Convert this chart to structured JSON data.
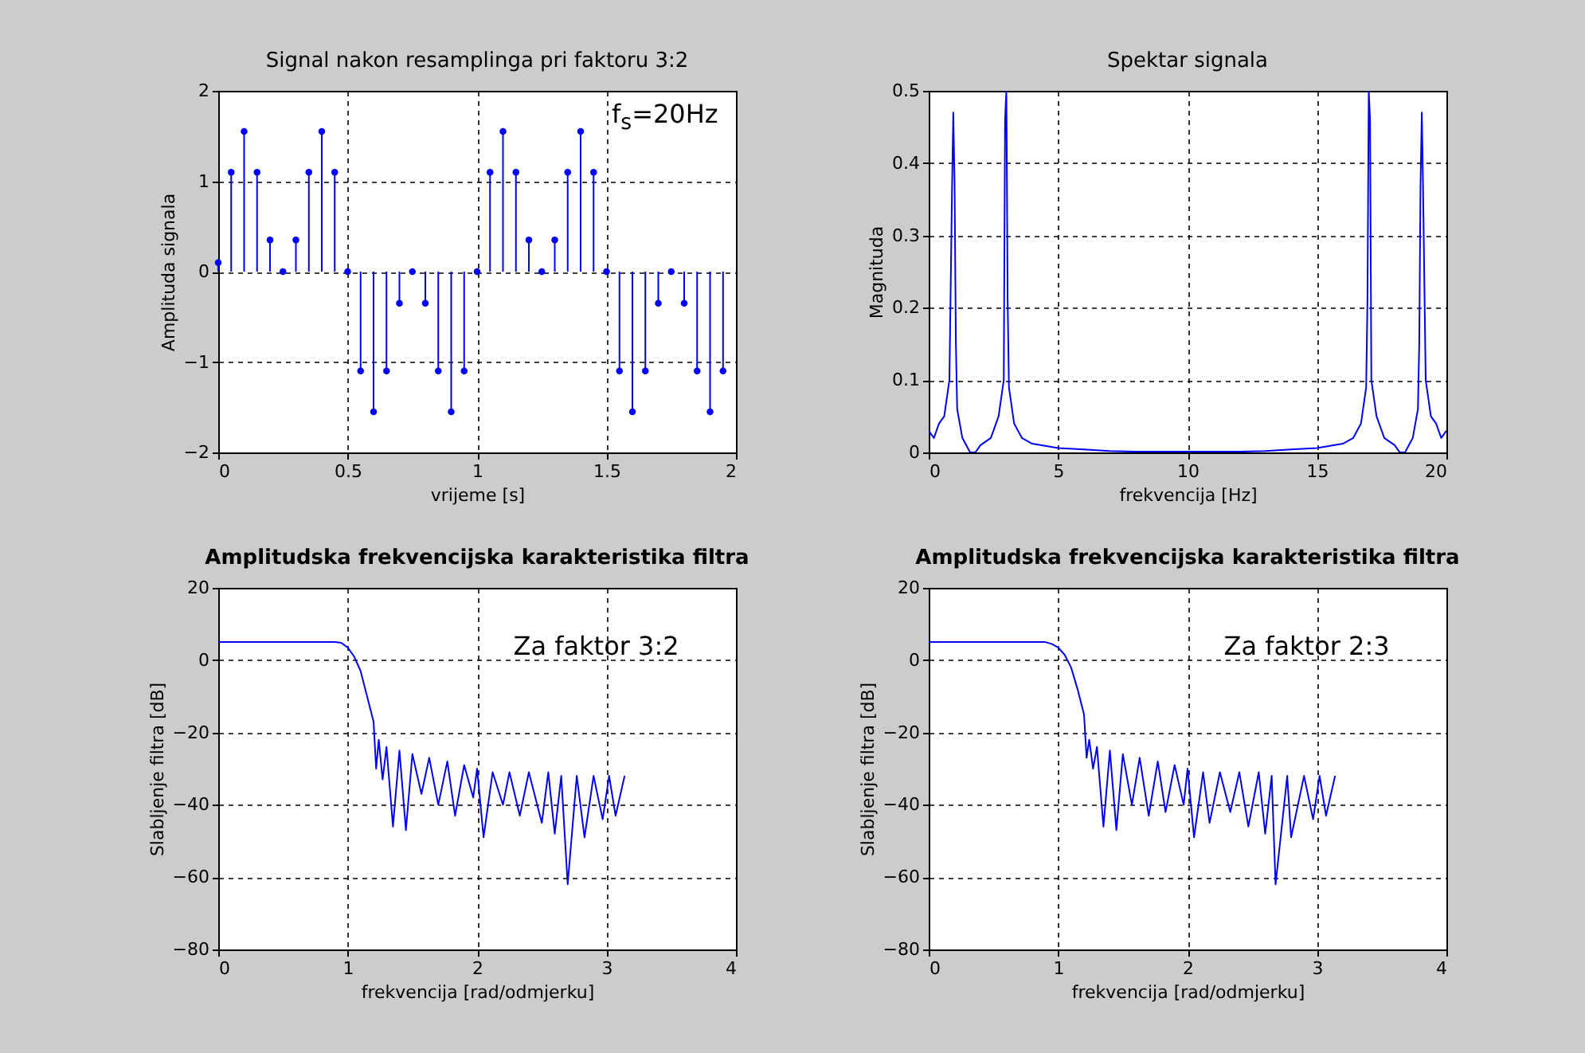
{
  "chart_data": [
    {
      "type": "lollipop",
      "title": "Signal nakon resamplinga pri faktoru 3:2",
      "xlabel": "vrijeme [s]",
      "ylabel": "Amplituda signala",
      "annotations": [
        "f$_{s}$=20Hz"
      ],
      "grid": true,
      "marker": "circle",
      "xlim": [
        0,
        2
      ],
      "xticks": [
        0,
        0.5,
        1,
        1.5,
        2
      ],
      "ylim": [
        -2,
        2
      ],
      "yticks": [
        -2,
        -1,
        0,
        1,
        2
      ],
      "x": [
        0,
        0.05,
        0.1,
        0.15,
        0.2,
        0.25,
        0.3,
        0.35,
        0.4,
        0.45,
        0.5,
        0.55,
        0.6,
        0.65,
        0.7,
        0.75,
        0.8,
        0.85,
        0.9,
        0.95,
        1,
        1.05,
        1.1,
        1.15,
        1.2,
        1.25,
        1.3,
        1.35,
        1.4,
        1.45,
        1.5,
        1.55,
        1.6,
        1.65,
        1.7,
        1.75,
        1.8,
        1.85,
        1.9,
        1.95
      ],
      "series": [
        {
          "color": "#0000ff",
          "values": [
            0.1,
            1.1,
            1.55,
            1.1,
            0.35,
            0,
            0.35,
            1.1,
            1.55,
            1.1,
            0,
            -1.1,
            -1.55,
            -1.1,
            -0.35,
            0,
            -0.35,
            -1.1,
            -1.55,
            -1.1,
            0,
            1.1,
            1.55,
            1.1,
            0.35,
            0,
            0.35,
            1.1,
            1.55,
            1.1,
            0,
            -1.1,
            -1.55,
            -1.1,
            -0.35,
            0,
            -0.35,
            -1.1,
            -1.55,
            -1.1
          ]
        }
      ]
    },
    {
      "type": "line",
      "title": "Spektar signala",
      "xlabel": "frekvencija [Hz]",
      "ylabel": "Magnituda",
      "grid": true,
      "xlim": [
        0,
        20
      ],
      "xticks": [
        0,
        5,
        10,
        15,
        20
      ],
      "ylim": [
        0,
        0.5
      ],
      "yticks": [
        0,
        0.1,
        0.2,
        0.3,
        0.4,
        0.5
      ],
      "x": [
        0,
        0.2,
        0.4,
        0.6,
        0.8,
        0.9,
        0.95,
        1,
        1.05,
        1.1,
        1.3,
        1.6,
        1.8,
        2,
        2.4,
        2.7,
        2.9,
        2.95,
        3,
        3.05,
        3.1,
        3.3,
        3.6,
        4,
        5,
        6,
        7,
        8,
        10,
        12,
        13,
        14,
        15,
        16,
        16.4,
        16.7,
        16.9,
        16.95,
        17,
        17.05,
        17.1,
        17.3,
        17.6,
        18,
        18.2,
        18.4,
        18.7,
        18.9,
        18.95,
        19,
        19.05,
        19.1,
        19.2,
        19.4,
        19.6,
        19.8,
        20
      ],
      "series": [
        {
          "color": "#0000ff",
          "values": [
            0.03,
            0.02,
            0.04,
            0.05,
            0.1,
            0.36,
            0.47,
            0.37,
            0.15,
            0.06,
            0.02,
            0,
            0,
            0.01,
            0.02,
            0.05,
            0.1,
            0.46,
            0.5,
            0.21,
            0.09,
            0.04,
            0.02,
            0.012,
            0.006,
            0.004,
            0.002,
            0.001,
            0.001,
            0.001,
            0.002,
            0.004,
            0.006,
            0.012,
            0.02,
            0.04,
            0.09,
            0.21,
            0.5,
            0.46,
            0.1,
            0.05,
            0.02,
            0.01,
            0,
            0,
            0.02,
            0.06,
            0.15,
            0.37,
            0.47,
            0.36,
            0.1,
            0.05,
            0.04,
            0.02,
            0.03
          ]
        }
      ]
    },
    {
      "type": "line",
      "title": "Amplitudska frekvencijska karakteristika filtra",
      "xlabel": "frekvencija [rad/odmjerku]",
      "ylabel": "Slabljenje filtra [dB]",
      "annotations": [
        "Za faktor 3:2"
      ],
      "grid": true,
      "xlim": [
        0,
        4
      ],
      "xticks": [
        0,
        1,
        2,
        3,
        4
      ],
      "ylim": [
        -80,
        20
      ],
      "yticks": [
        -80,
        -60,
        -40,
        -20,
        0,
        20
      ],
      "x": [
        0,
        0.5,
        0.9,
        0.95,
        1,
        1.05,
        1.1,
        1.15,
        1.2,
        1.22,
        1.24,
        1.27,
        1.3,
        1.35,
        1.4,
        1.45,
        1.5,
        1.57,
        1.63,
        1.7,
        1.77,
        1.83,
        1.9,
        1.97,
        2,
        2.05,
        2.12,
        2.2,
        2.25,
        2.33,
        2.4,
        2.5,
        2.55,
        2.6,
        2.65,
        2.7,
        2.77,
        2.83,
        2.9,
        2.97,
        3.02,
        3.07,
        3.14
      ],
      "series": [
        {
          "color": "#0000ff",
          "values": [
            5,
            5,
            5,
            4.8,
            3.5,
            1,
            -3,
            -10,
            -17,
            -30,
            -22,
            -33,
            -24,
            -46,
            -25,
            -47,
            -26,
            -37,
            -27,
            -40,
            -28,
            -43,
            -29,
            -38,
            -30,
            -49,
            -31,
            -40,
            -31,
            -43,
            -31,
            -45,
            -31,
            -48,
            -32,
            -62,
            -32,
            -49,
            -32,
            -44,
            -32,
            -43,
            -32
          ]
        }
      ]
    },
    {
      "type": "line",
      "title": "Amplitudska frekvencijska karakteristika filtra",
      "xlabel": "frekvencija [rad/odmjerku]",
      "ylabel": "Slabljenje filtra [dB]",
      "annotations": [
        "Za faktor 2:3"
      ],
      "grid": true,
      "xlim": [
        0,
        4
      ],
      "xticks": [
        0,
        1,
        2,
        3,
        4
      ],
      "ylim": [
        -80,
        20
      ],
      "yticks": [
        -80,
        -60,
        -40,
        -20,
        0,
        20
      ],
      "x": [
        0,
        0.5,
        0.9,
        0.95,
        1,
        1.05,
        1.1,
        1.15,
        1.2,
        1.22,
        1.24,
        1.27,
        1.3,
        1.35,
        1.4,
        1.45,
        1.5,
        1.57,
        1.63,
        1.7,
        1.77,
        1.83,
        1.9,
        1.97,
        2,
        2.05,
        2.12,
        2.17,
        2.25,
        2.33,
        2.4,
        2.47,
        2.55,
        2.6,
        2.65,
        2.68,
        2.77,
        2.8,
        2.9,
        2.97,
        3.02,
        3.07,
        3.14
      ],
      "series": [
        {
          "color": "#0000ff",
          "values": [
            5,
            5,
            5,
            4.5,
            3.5,
            1.5,
            -2,
            -8,
            -15,
            -27,
            -22,
            -30,
            -24,
            -46,
            -25,
            -47,
            -26,
            -40,
            -27,
            -43,
            -28,
            -42,
            -29,
            -40,
            -30,
            -49,
            -31,
            -45,
            -31,
            -42,
            -31,
            -46,
            -31,
            -48,
            -32,
            -62,
            -32,
            -49,
            -32,
            -44,
            -32,
            -43,
            -32
          ]
        }
      ]
    }
  ]
}
